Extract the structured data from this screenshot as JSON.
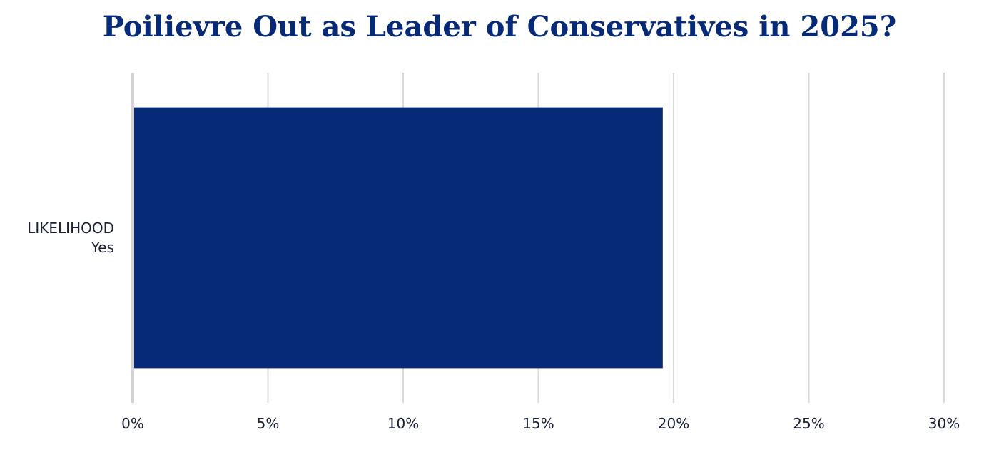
{
  "chart_data": {
    "type": "bar",
    "orientation": "horizontal",
    "title": "Poilievre Out as Leader of Conservatives in 2025?",
    "categories": [
      [
        "LIKELIHOOD",
        "Yes"
      ]
    ],
    "values": [
      19.6
    ],
    "xlim": [
      0,
      30
    ],
    "xticks": [
      0,
      5,
      10,
      15,
      20,
      25,
      30
    ],
    "tick_suffix": "%",
    "grid": true,
    "bar_color": "#072a78",
    "grid_color": "#d9d9d9"
  }
}
